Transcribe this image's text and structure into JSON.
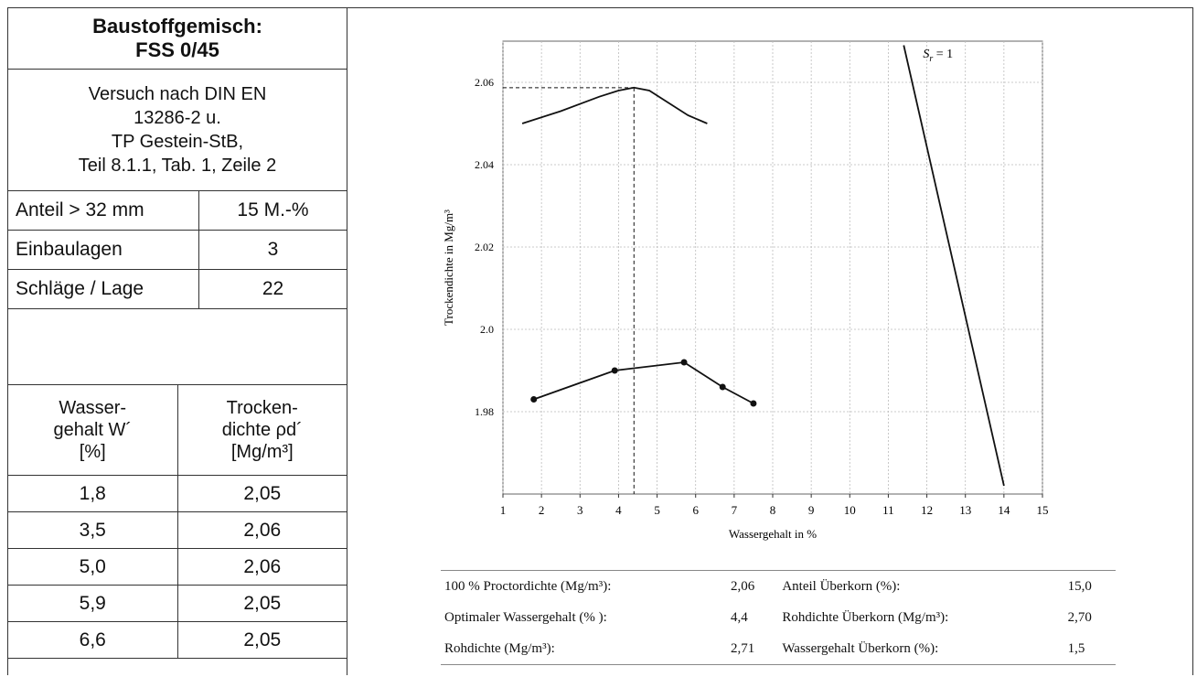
{
  "left_panel": {
    "title_line1": "Baustoffgemisch:",
    "title_line2": "FSS 0/45",
    "test_lines": [
      "Versuch nach DIN EN",
      "13286-2 u.",
      "TP Gestein-StB,",
      "Teil 8.1.1, Tab. 1, Zeile 2"
    ],
    "params": [
      {
        "label": "Anteil > 32 mm",
        "value": "15 M.-%"
      },
      {
        "label": "Einbaulagen",
        "value": "3"
      },
      {
        "label": "Schläge / Lage",
        "value": "22"
      }
    ],
    "data_table": {
      "col1_header": [
        "Wasser-",
        "gehalt W´",
        "[%]"
      ],
      "col2_header": [
        "Trocken-",
        "dichte ρd´",
        "[Mg/m³]"
      ],
      "rows": [
        [
          "1,8",
          "2,05"
        ],
        [
          "3,5",
          "2,06"
        ],
        [
          "5,0",
          "2,06"
        ],
        [
          "5,9",
          "2,05"
        ],
        [
          "6,6",
          "2,05"
        ]
      ]
    }
  },
  "chart_data": {
    "type": "line",
    "xlabel": "Wassergehalt in %",
    "ylabel": "Trockendichte in Mg/m³",
    "xlim": [
      1,
      15
    ],
    "ylim": [
      1.96,
      2.07
    ],
    "x_ticks": [
      "1",
      "2",
      "3",
      "4",
      "5",
      "6",
      "7",
      "8",
      "9",
      "10",
      "11",
      "12",
      "13",
      "14",
      "15"
    ],
    "y_ticks": [
      "1.98",
      "2.0",
      "2.02",
      "2.04",
      "2.06"
    ],
    "y_tick_values": [
      1.98,
      2.0,
      2.02,
      2.04,
      2.06
    ],
    "grid": true,
    "series": [
      {
        "x": [
          1.5,
          2.5,
          3.5,
          4.0,
          4.4,
          4.8,
          5.3,
          5.8,
          6.3
        ],
        "y": [
          2.05,
          2.053,
          2.0565,
          2.058,
          2.0587,
          2.058,
          2.055,
          2.052,
          2.05
        ],
        "markers": false
      },
      {
        "x": [
          1.8,
          3.9,
          5.7,
          6.7,
          7.5
        ],
        "y": [
          1.983,
          1.99,
          1.992,
          1.986,
          1.982
        ],
        "markers": true
      },
      {
        "label": "S_r = 1",
        "x": [
          11.4,
          14.0
        ],
        "y": [
          2.069,
          1.962
        ],
        "markers": false
      }
    ],
    "annotations": [
      {
        "type": "dashed-crosshair",
        "x": 4.4,
        "y": 2.0587
      }
    ],
    "sat_label_main": "S",
    "sat_label_sub": "r",
    "sat_label_eq": " = 1"
  },
  "summary": {
    "rows": [
      [
        "100 % Proctordichte (Mg/m³):",
        "2,06",
        "Anteil Überkorn (%):",
        "15,0"
      ],
      [
        "Optimaler Wassergehalt (% ):",
        "4,4",
        "Rohdichte Überkorn (Mg/m³):",
        "2,70"
      ],
      [
        "Rohdichte (Mg/m³):",
        "2,71",
        "Wassergehalt Überkorn (%):",
        "1,5"
      ]
    ]
  }
}
